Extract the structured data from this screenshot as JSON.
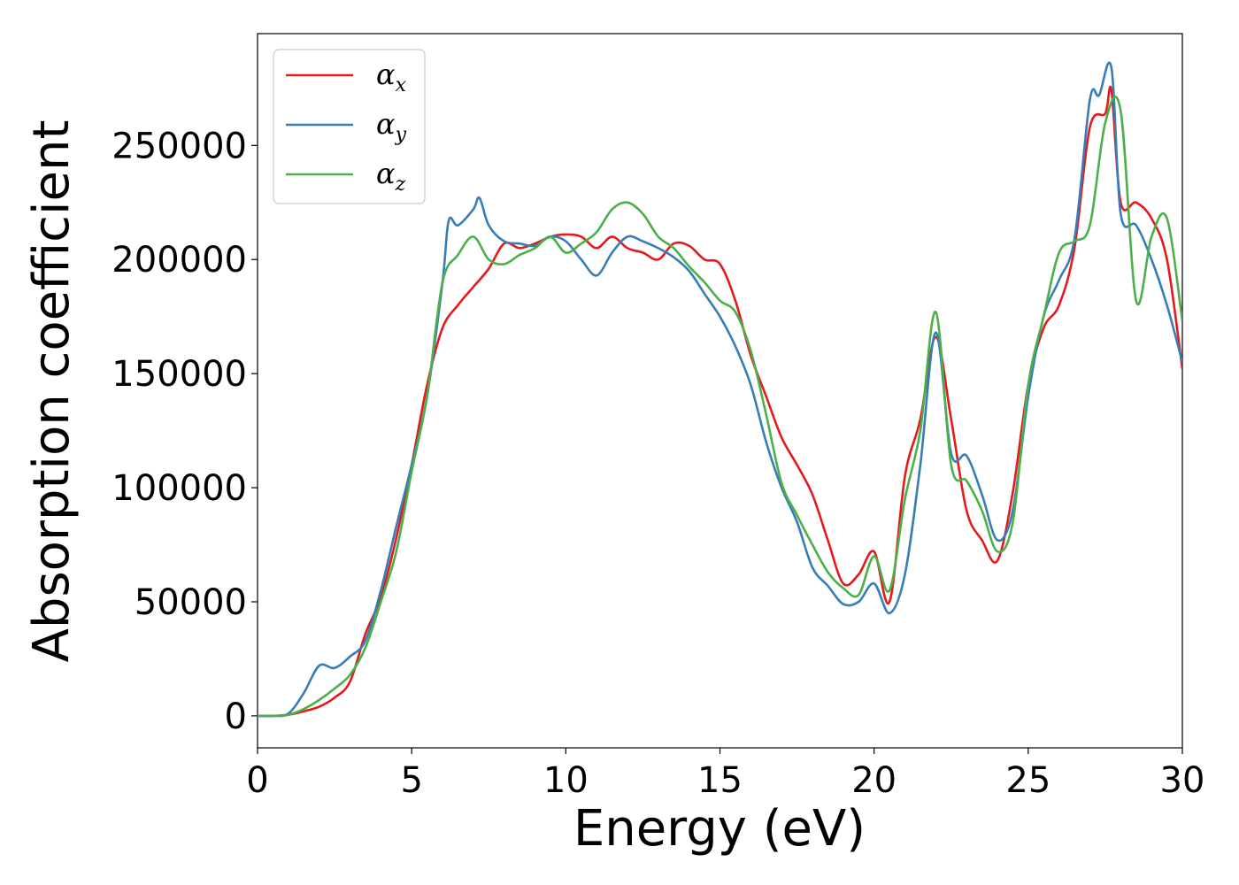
{
  "chart_data": {
    "type": "line",
    "title": "",
    "xlabel": "Energy (eV)",
    "ylabel": "Absorption coefficient",
    "xlim": [
      0,
      30
    ],
    "ylim": [
      -14000,
      299000
    ],
    "xticks": [
      0,
      5,
      10,
      15,
      20,
      25,
      30
    ],
    "yticks": [
      0,
      50000,
      100000,
      150000,
      200000,
      250000
    ],
    "grid": false,
    "legend_position": "top-left",
    "series": [
      {
        "name": "α",
        "sub": "x",
        "color": "#e41a1c",
        "x": [
          0,
          0.5,
          1,
          1.5,
          2,
          2.5,
          3,
          3.5,
          4,
          4.5,
          5,
          5.5,
          6,
          6.5,
          7,
          7.5,
          8,
          8.5,
          9,
          9.5,
          10,
          10.5,
          11,
          11.5,
          12,
          12.5,
          13,
          13.5,
          14,
          14.5,
          15,
          15.5,
          16,
          16.5,
          17,
          17.5,
          18,
          18.5,
          19,
          19.5,
          20,
          20.5,
          21,
          21.5,
          22,
          22.5,
          23,
          23.5,
          24,
          24.5,
          25,
          25.5,
          26,
          26.5,
          27,
          27.5,
          27.7,
          28,
          28.5,
          29,
          29.5,
          30
        ],
        "y": [
          0,
          0,
          500,
          2000,
          4000,
          8000,
          15000,
          36000,
          52000,
          78000,
          110000,
          145000,
          170000,
          180000,
          188000,
          196000,
          207000,
          205000,
          207000,
          210000,
          211000,
          210000,
          205000,
          210000,
          205000,
          203000,
          200000,
          207000,
          206000,
          200000,
          198000,
          182000,
          158000,
          140000,
          122000,
          110000,
          97000,
          77000,
          58000,
          62000,
          72000,
          50000,
          105000,
          130000,
          166000,
          130000,
          90000,
          77000,
          68000,
          98000,
          145000,
          170000,
          180000,
          205000,
          258000,
          264000,
          274000,
          225000,
          225000,
          218000,
          200000,
          152000
        ]
      },
      {
        "name": "α",
        "sub": "y",
        "color": "#377eb8",
        "x": [
          0,
          0.5,
          1,
          1.5,
          2,
          2.5,
          3,
          3.5,
          4,
          4.5,
          5,
          5.5,
          6,
          6.2,
          6.5,
          7,
          7.2,
          7.5,
          8,
          8.5,
          9,
          9.5,
          10,
          10.5,
          11,
          11.5,
          12,
          12.5,
          13,
          13.5,
          14,
          14.5,
          15,
          15.5,
          16,
          16.5,
          17,
          17.5,
          18,
          18.5,
          19,
          19.5,
          20,
          20.5,
          21,
          21.5,
          22,
          22.5,
          23,
          23.5,
          24,
          24.5,
          25,
          25.5,
          26,
          26.5,
          27,
          27.3,
          27.7,
          28,
          28.5,
          29,
          29.5,
          30
        ],
        "y": [
          0,
          0,
          1000,
          10000,
          22000,
          21000,
          26000,
          33000,
          55000,
          83000,
          110000,
          140000,
          190000,
          217000,
          215000,
          222000,
          227000,
          215000,
          208000,
          207000,
          206000,
          210000,
          208000,
          200000,
          193000,
          203000,
          210000,
          208000,
          205000,
          201000,
          195000,
          185000,
          175000,
          162000,
          145000,
          120000,
          100000,
          85000,
          65000,
          57000,
          49000,
          50000,
          58000,
          45000,
          62000,
          110000,
          168000,
          115000,
          114000,
          97000,
          77000,
          90000,
          140000,
          175000,
          191000,
          209000,
          270000,
          272000,
          284000,
          220000,
          215000,
          200000,
          180000,
          155000
        ]
      },
      {
        "name": "α",
        "sub": "z",
        "color": "#4daf4a",
        "x": [
          0,
          0.5,
          1,
          1.5,
          2,
          2.5,
          3,
          3.5,
          4,
          4.5,
          5,
          5.5,
          6,
          6.5,
          7,
          7.5,
          8,
          8.5,
          9,
          9.5,
          10,
          10.5,
          11,
          11.5,
          12,
          12.5,
          13,
          13.5,
          14,
          14.5,
          15,
          15.5,
          16,
          16.5,
          17,
          17.5,
          18,
          18.5,
          19,
          19.5,
          20,
          20.5,
          21,
          21.5,
          22,
          22.5,
          23,
          23.5,
          24,
          24.5,
          25,
          25.5,
          26,
          26.5,
          27,
          27.5,
          28,
          28.5,
          29,
          29.5,
          30
        ],
        "y": [
          0,
          0,
          500,
          3000,
          7000,
          12000,
          18000,
          30000,
          50000,
          72000,
          107000,
          140000,
          190000,
          202000,
          210000,
          200000,
          198000,
          202000,
          205000,
          210000,
          203000,
          207000,
          212000,
          222000,
          225000,
          220000,
          210000,
          205000,
          197000,
          190000,
          182000,
          177000,
          160000,
          132000,
          102000,
          88000,
          75000,
          63000,
          56000,
          53000,
          70000,
          55000,
          95000,
          125000,
          177000,
          110000,
          103000,
          90000,
          72000,
          85000,
          145000,
          175000,
          203000,
          208000,
          215000,
          260000,
          265000,
          182000,
          210000,
          218000,
          173000
        ]
      }
    ]
  }
}
